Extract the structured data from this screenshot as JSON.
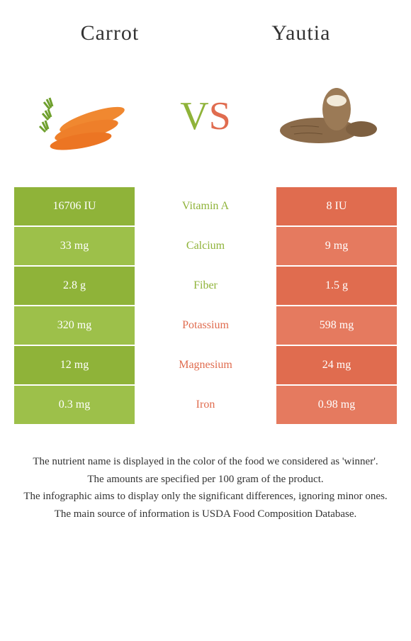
{
  "food_left": {
    "name": "Carrot",
    "color": "#8fb339",
    "color_alt": "#9dc04a"
  },
  "food_right": {
    "name": "Yautia",
    "color": "#e06c4f",
    "color_alt": "#e57a5f"
  },
  "vs_text": {
    "v": "V",
    "s": "S"
  },
  "nutrients": [
    {
      "name": "Vitamin A",
      "left": "16706 IU",
      "right": "8 IU",
      "winner": "left"
    },
    {
      "name": "Calcium",
      "left": "33 mg",
      "right": "9 mg",
      "winner": "left"
    },
    {
      "name": "Fiber",
      "left": "2.8 g",
      "right": "1.5 g",
      "winner": "left"
    },
    {
      "name": "Potassium",
      "left": "320 mg",
      "right": "598 mg",
      "winner": "right"
    },
    {
      "name": "Magnesium",
      "left": "12 mg",
      "right": "24 mg",
      "winner": "right"
    },
    {
      "name": "Iron",
      "left": "0.3 mg",
      "right": "0.98 mg",
      "winner": "right"
    }
  ],
  "footer_lines": [
    "The nutrient name is displayed in the color of the food we considered as 'winner'.",
    "The amounts are specified per 100 gram of the product.",
    "The infographic aims to display only the significant differences, ignoring minor ones.",
    "The main source of information is USDA Food Composition Database."
  ],
  "colors": {
    "left_primary": "#8fb339",
    "left_alt": "#9dc04a",
    "right_primary": "#e06c4f",
    "right_alt": "#e57a5f",
    "background": "#ffffff",
    "text": "#333333"
  }
}
